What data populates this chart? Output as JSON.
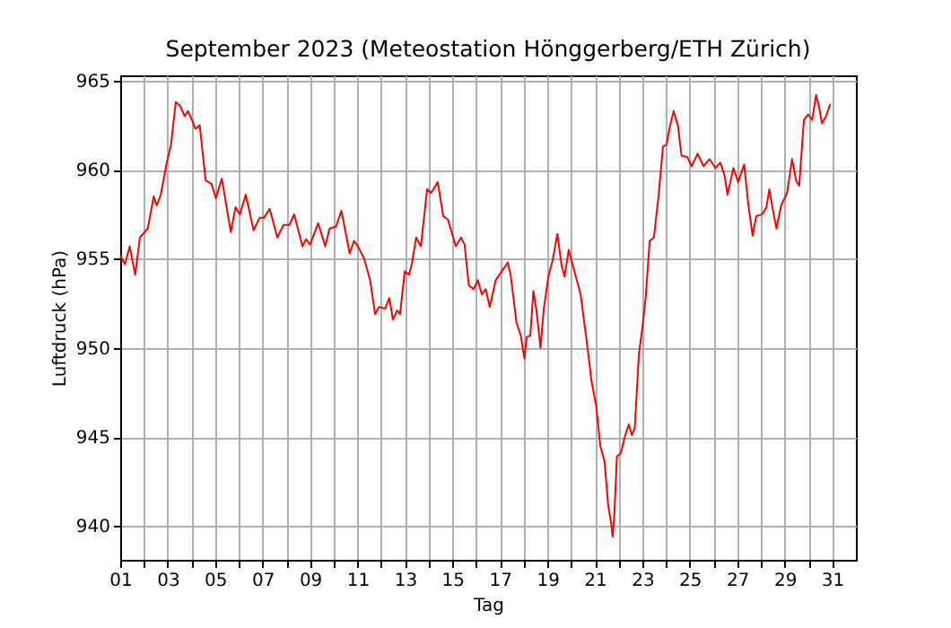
{
  "chart_data": {
    "type": "line",
    "title": "September 2023  (Meteostation Hönggerberg/ETH Zürich)",
    "xlabel": "Tag",
    "ylabel": "Luftdruck (hPa)",
    "x": [
      1.0,
      1.2,
      1.4,
      1.63,
      1.83,
      2.16,
      2.41,
      2.54,
      2.71,
      2.96,
      3.14,
      3.34,
      3.52,
      3.72,
      3.85,
      4.02,
      4.17,
      4.35,
      4.6,
      4.85,
      5.03,
      5.28,
      5.66,
      5.86,
      6.04,
      6.29,
      6.62,
      6.87,
      7.05,
      7.3,
      7.62,
      7.88,
      8.13,
      8.33,
      8.68,
      8.83,
      9.0,
      9.34,
      9.64,
      9.82,
      10.09,
      10.32,
      10.67,
      10.85,
      11.02,
      11.28,
      11.53,
      11.74,
      11.91,
      12.16,
      12.34,
      12.49,
      12.67,
      12.79,
      12.99,
      13.17,
      13.3,
      13.47,
      13.67,
      13.93,
      14.1,
      14.38,
      14.61,
      14.81,
      15.14,
      15.36,
      15.51,
      15.69,
      15.89,
      16.07,
      16.24,
      16.4,
      16.57,
      16.82,
      17.08,
      17.33,
      17.45,
      17.7,
      17.88,
      18.03,
      18.13,
      18.28,
      18.41,
      18.54,
      18.71,
      18.84,
      19.04,
      19.22,
      19.42,
      19.59,
      19.72,
      19.9,
      20.1,
      20.4,
      20.73,
      20.85,
      21.06,
      21.23,
      21.41,
      21.56,
      21.68,
      21.75,
      21.82,
      21.93,
      22.1,
      22.26,
      22.43,
      22.56,
      22.68,
      22.86,
      23.0,
      23.14,
      23.31,
      23.49,
      23.69,
      23.87,
      24.02,
      24.14,
      24.32,
      24.5,
      24.65,
      24.9,
      25.08,
      25.33,
      25.58,
      25.83,
      26.08,
      26.29,
      26.46,
      26.59,
      26.84,
      27.04,
      27.29,
      27.47,
      27.65,
      27.8,
      28.05,
      28.23,
      28.35,
      28.48,
      28.65,
      28.85,
      29.1,
      29.31,
      29.48,
      29.61,
      29.81,
      29.99,
      30.16,
      30.32,
      30.44,
      30.57,
      30.74,
      30.92
    ],
    "series": [
      {
        "color": "#ff0000",
        "values": [
          955.2,
          954.7,
          955.7,
          954.1,
          956.2,
          956.7,
          958.5,
          958.0,
          958.6,
          960.4,
          961.4,
          963.8,
          963.6,
          963.0,
          963.3,
          962.8,
          962.3,
          962.5,
          959.4,
          959.2,
          958.4,
          959.5,
          956.5,
          957.9,
          957.5,
          958.6,
          956.6,
          957.3,
          957.3,
          957.8,
          956.2,
          956.9,
          956.9,
          957.5,
          955.7,
          956.1,
          955.8,
          957.0,
          955.7,
          956.7,
          956.8,
          957.7,
          955.3,
          956.0,
          955.7,
          955.0,
          953.8,
          951.9,
          952.3,
          952.2,
          952.8,
          951.6,
          952.1,
          951.9,
          954.3,
          954.1,
          954.8,
          956.2,
          955.7,
          958.9,
          958.7,
          959.3,
          957.4,
          957.2,
          955.7,
          956.2,
          955.8,
          953.5,
          953.3,
          953.8,
          953.0,
          953.3,
          952.3,
          953.8,
          954.3,
          954.8,
          954.1,
          951.4,
          950.7,
          949.4,
          950.6,
          950.7,
          953.2,
          952.1,
          950.0,
          952.1,
          954.0,
          954.9,
          956.4,
          954.7,
          954.0,
          955.5,
          954.5,
          953.0,
          949.6,
          948.2,
          946.7,
          944.5,
          943.6,
          941.2,
          940.2,
          939.4,
          940.6,
          943.9,
          944.1,
          945.0,
          945.7,
          945.1,
          945.5,
          949.7,
          951.1,
          952.8,
          956.0,
          956.2,
          958.6,
          961.3,
          961.4,
          962.3,
          963.3,
          962.5,
          960.8,
          960.7,
          960.2,
          960.9,
          960.2,
          960.6,
          960.1,
          960.4,
          959.7,
          958.6,
          960.1,
          959.3,
          960.3,
          958.0,
          956.3,
          957.4,
          957.5,
          957.9,
          958.9,
          957.9,
          956.7,
          958.0,
          958.7,
          960.6,
          959.4,
          959.1,
          962.8,
          963.1,
          962.8,
          964.2,
          963.6,
          962.6,
          963.0,
          963.7
        ]
      }
    ],
    "xlim": [
      1,
      32
    ],
    "ylim": [
      938.1,
      965.3
    ],
    "xticks": [
      {
        "value": 1,
        "label": "01"
      },
      {
        "value": 2,
        "label": null
      },
      {
        "value": 3,
        "label": "03"
      },
      {
        "value": 4,
        "label": null
      },
      {
        "value": 5,
        "label": "05"
      },
      {
        "value": 6,
        "label": null
      },
      {
        "value": 7,
        "label": "07"
      },
      {
        "value": 8,
        "label": null
      },
      {
        "value": 9,
        "label": "09"
      },
      {
        "value": 10,
        "label": null
      },
      {
        "value": 11,
        "label": "11"
      },
      {
        "value": 12,
        "label": null
      },
      {
        "value": 13,
        "label": "13"
      },
      {
        "value": 14,
        "label": null
      },
      {
        "value": 15,
        "label": "15"
      },
      {
        "value": 16,
        "label": null
      },
      {
        "value": 17,
        "label": "17"
      },
      {
        "value": 18,
        "label": null
      },
      {
        "value": 19,
        "label": "19"
      },
      {
        "value": 20,
        "label": null
      },
      {
        "value": 21,
        "label": "21"
      },
      {
        "value": 22,
        "label": null
      },
      {
        "value": 23,
        "label": "23"
      },
      {
        "value": 24,
        "label": null
      },
      {
        "value": 25,
        "label": "25"
      },
      {
        "value": 26,
        "label": null
      },
      {
        "value": 27,
        "label": "27"
      },
      {
        "value": 28,
        "label": null
      },
      {
        "value": 29,
        "label": "29"
      },
      {
        "value": 30,
        "label": null
      },
      {
        "value": 31,
        "label": "31"
      }
    ],
    "yticks": [
      940,
      945,
      950,
      955,
      960,
      965
    ],
    "grid": true
  }
}
